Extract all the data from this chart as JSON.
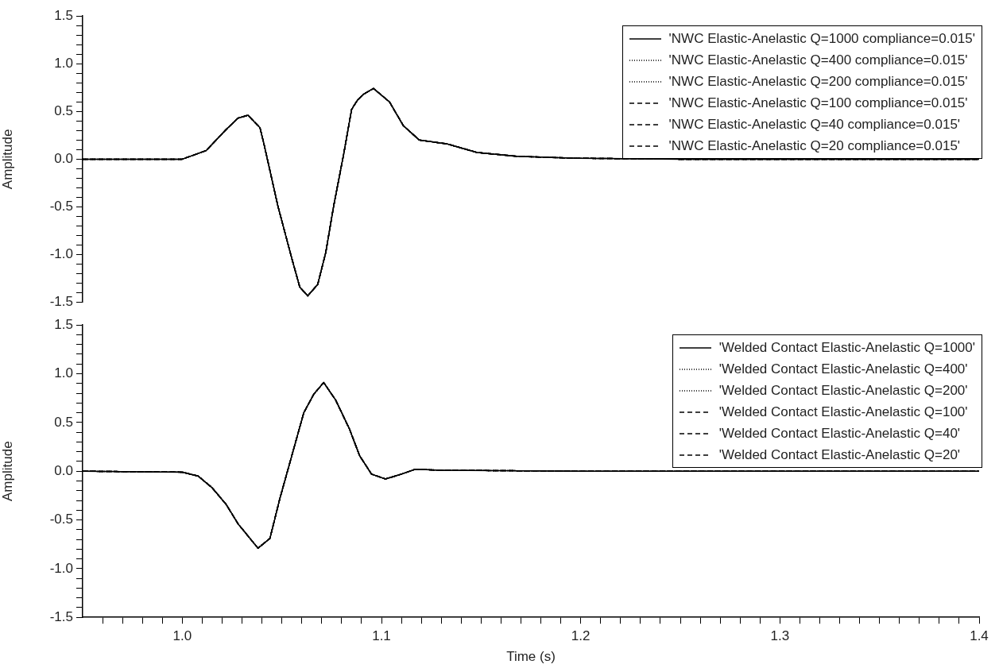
{
  "chart_data": [
    {
      "type": "line",
      "ylabel": "Amplitude",
      "legend": "top right",
      "tick_labels": "y",
      "xlim": [
        0.95,
        1.4
      ],
      "ylim": [
        -1.5,
        1.5
      ],
      "yticks": [
        -1.5,
        {
          "value": -1.4,
          "label": null
        },
        {
          "value": -1.3,
          "label": null
        },
        {
          "value": -1.2,
          "label": null
        },
        {
          "value": -1.1,
          "label": null
        },
        {
          "value": -1,
          "label": "-1.0"
        },
        {
          "value": -0.9,
          "label": null
        },
        {
          "value": -0.8,
          "label": null
        },
        {
          "value": -0.7,
          "label": null
        },
        {
          "value": -0.6,
          "label": null
        },
        -0.5,
        {
          "value": -0.4,
          "label": null
        },
        {
          "value": -0.3,
          "label": null
        },
        {
          "value": -0.2,
          "label": null
        },
        {
          "value": -0.1,
          "label": null
        },
        {
          "value": 0,
          "label": "0.0"
        },
        {
          "value": 0.1,
          "label": null
        },
        {
          "value": 0.2,
          "label": null
        },
        {
          "value": 0.3,
          "label": null
        },
        {
          "value": 0.4,
          "label": null
        },
        0.5,
        {
          "value": 0.6,
          "label": null
        },
        {
          "value": 0.7,
          "label": null
        },
        {
          "value": 0.8,
          "label": null
        },
        {
          "value": 0.9,
          "label": null
        },
        {
          "value": 1,
          "label": "1.0"
        },
        {
          "value": 1.1,
          "label": null
        },
        {
          "value": 1.2,
          "label": null
        },
        {
          "value": 1.3,
          "label": null
        },
        {
          "value": 1.4,
          "label": null
        },
        1.5
      ],
      "x": [
        0.95,
        1.0,
        1.012,
        1.022,
        1.028,
        1.033,
        1.039,
        1.041,
        1.048,
        1.055,
        1.059,
        1.063,
        1.068,
        1.072,
        1.076,
        1.081,
        1.085,
        1.088,
        1.091,
        1.096,
        1.104,
        1.111,
        1.119,
        1.133,
        1.148,
        1.168,
        1.198,
        1.25,
        1.4
      ],
      "series": [
        {
          "name": "'NWC Elastic-Anelastic Q=1000 compliance=0.015'",
          "color": "#000000",
          "line_style": "solid",
          "values": [
            0,
            0,
            0.09,
            0.31,
            0.43,
            0.46,
            0.33,
            0.16,
            -0.49,
            -1.04,
            -1.34,
            -1.43,
            -1.31,
            -0.98,
            -0.49,
            0.05,
            0.52,
            0.62,
            0.68,
            0.74,
            0.6,
            0.35,
            0.2,
            0.16,
            0.07,
            0.03,
            0.01,
            0,
            0
          ]
        },
        {
          "name": "'NWC Elastic-Anelastic Q=400 compliance=0.015'",
          "color": "#000000",
          "line_style": "dotted",
          "values": [
            0,
            0,
            0.09,
            0.31,
            0.43,
            0.46,
            0.33,
            0.16,
            -0.49,
            -1.04,
            -1.34,
            -1.43,
            -1.31,
            -0.98,
            -0.49,
            0.05,
            0.52,
            0.62,
            0.68,
            0.74,
            0.6,
            0.35,
            0.2,
            0.16,
            0.07,
            0.03,
            0.01,
            0,
            0
          ]
        },
        {
          "name": "'NWC Elastic-Anelastic Q=200 compliance=0.015'",
          "color": "#000000",
          "line_style": "dotted",
          "values": [
            0,
            0,
            0.09,
            0.31,
            0.43,
            0.46,
            0.33,
            0.16,
            -0.49,
            -1.04,
            -1.34,
            -1.43,
            -1.31,
            -0.98,
            -0.49,
            0.05,
            0.52,
            0.62,
            0.68,
            0.74,
            0.6,
            0.35,
            0.2,
            0.16,
            0.07,
            0.03,
            0.01,
            0,
            0
          ]
        },
        {
          "name": "'NWC Elastic-Anelastic Q=100 compliance=0.015'",
          "color": "#000000",
          "line_style": "dashed",
          "values": [
            0,
            0,
            0.09,
            0.31,
            0.43,
            0.46,
            0.33,
            0.16,
            -0.49,
            -1.04,
            -1.34,
            -1.43,
            -1.31,
            -0.98,
            -0.49,
            0.05,
            0.52,
            0.62,
            0.68,
            0.74,
            0.6,
            0.35,
            0.2,
            0.16,
            0.07,
            0.03,
            0.01,
            0,
            0
          ]
        },
        {
          "name": "'NWC Elastic-Anelastic Q=40 compliance=0.015'",
          "color": "#000000",
          "line_style": "dashed",
          "values": [
            0,
            0,
            0.09,
            0.31,
            0.43,
            0.46,
            0.33,
            0.16,
            -0.49,
            -1.04,
            -1.34,
            -1.43,
            -1.31,
            -0.98,
            -0.49,
            0.05,
            0.52,
            0.62,
            0.68,
            0.74,
            0.6,
            0.35,
            0.2,
            0.16,
            0.07,
            0.03,
            0.01,
            0,
            0
          ]
        },
        {
          "name": "'NWC Elastic-Anelastic Q=20 compliance=0.015'",
          "color": "#000000",
          "line_style": "dashed",
          "values": [
            0,
            0,
            0.09,
            0.31,
            0.43,
            0.46,
            0.33,
            0.16,
            -0.49,
            -1.04,
            -1.34,
            -1.43,
            -1.31,
            -0.98,
            -0.49,
            0.05,
            0.52,
            0.62,
            0.68,
            0.74,
            0.6,
            0.35,
            0.2,
            0.16,
            0.07,
            0.03,
            0.01,
            0,
            0
          ]
        }
      ]
    },
    {
      "type": "line",
      "ylabel": "Amplitude",
      "xlabel": "Time (s)",
      "legend": "top right",
      "xlim": [
        0.95,
        1.4
      ],
      "xticks": [
        {
          "value": 0.96,
          "label": null
        },
        {
          "value": 0.97,
          "label": null
        },
        {
          "value": 0.98,
          "label": null
        },
        {
          "value": 0.99,
          "label": null
        },
        {
          "value": 1,
          "label": "1.0"
        },
        {
          "value": 1.01,
          "label": null
        },
        {
          "value": 1.02,
          "label": null
        },
        {
          "value": 1.03,
          "label": null
        },
        {
          "value": 1.04,
          "label": null
        },
        {
          "value": 1.05,
          "label": null
        },
        {
          "value": 1.06,
          "label": null
        },
        {
          "value": 1.07,
          "label": null
        },
        {
          "value": 1.08,
          "label": null
        },
        {
          "value": 1.09,
          "label": null
        },
        {
          "value": 1.1,
          "label": "1.1"
        },
        {
          "value": 1.11,
          "label": null
        },
        {
          "value": 1.12,
          "label": null
        },
        {
          "value": 1.13,
          "label": null
        },
        {
          "value": 1.14,
          "label": null
        },
        {
          "value": 1.15,
          "label": null
        },
        {
          "value": 1.16,
          "label": null
        },
        {
          "value": 1.17,
          "label": null
        },
        {
          "value": 1.18,
          "label": null
        },
        {
          "value": 1.19,
          "label": null
        },
        {
          "value": 1.2,
          "label": "1.2"
        },
        {
          "value": 1.21,
          "label": null
        },
        {
          "value": 1.22,
          "label": null
        },
        {
          "value": 1.23,
          "label": null
        },
        {
          "value": 1.24,
          "label": null
        },
        {
          "value": 1.25,
          "label": null
        },
        {
          "value": 1.26,
          "label": null
        },
        {
          "value": 1.27,
          "label": null
        },
        {
          "value": 1.28,
          "label": null
        },
        {
          "value": 1.29,
          "label": null
        },
        {
          "value": 1.3,
          "label": "1.3"
        },
        {
          "value": 1.31,
          "label": null
        },
        {
          "value": 1.32,
          "label": null
        },
        {
          "value": 1.33,
          "label": null
        },
        {
          "value": 1.34,
          "label": null
        },
        {
          "value": 1.35,
          "label": null
        },
        {
          "value": 1.36,
          "label": null
        },
        {
          "value": 1.37,
          "label": null
        },
        {
          "value": 1.38,
          "label": null
        },
        {
          "value": 1.39,
          "label": null
        },
        {
          "value": 1.4,
          "label": "1.4"
        }
      ],
      "ylim": [
        -1.5,
        1.5
      ],
      "yticks": [
        -1.5,
        {
          "value": -1.4,
          "label": null
        },
        {
          "value": -1.3,
          "label": null
        },
        {
          "value": -1.2,
          "label": null
        },
        {
          "value": -1.1,
          "label": null
        },
        {
          "value": -1,
          "label": "-1.0"
        },
        {
          "value": -0.9,
          "label": null
        },
        {
          "value": -0.8,
          "label": null
        },
        {
          "value": -0.7,
          "label": null
        },
        {
          "value": -0.6,
          "label": null
        },
        -0.5,
        {
          "value": -0.4,
          "label": null
        },
        {
          "value": -0.3,
          "label": null
        },
        {
          "value": -0.2,
          "label": null
        },
        {
          "value": -0.1,
          "label": null
        },
        {
          "value": 0,
          "label": "0.0"
        },
        {
          "value": 0.1,
          "label": null
        },
        {
          "value": 0.2,
          "label": null
        },
        {
          "value": 0.3,
          "label": null
        },
        {
          "value": 0.4,
          "label": null
        },
        0.5,
        {
          "value": 0.6,
          "label": null
        },
        {
          "value": 0.7,
          "label": null
        },
        {
          "value": 0.8,
          "label": null
        },
        {
          "value": 0.9,
          "label": null
        },
        {
          "value": 1,
          "label": "1.0"
        },
        {
          "value": 1.1,
          "label": null
        },
        {
          "value": 1.2,
          "label": null
        },
        {
          "value": 1.3,
          "label": null
        },
        {
          "value": 1.4,
          "label": null
        },
        1.5
      ],
      "x": [
        0.95,
        1.0,
        1.008,
        1.015,
        1.022,
        1.028,
        1.038,
        1.044,
        1.049,
        1.055,
        1.061,
        1.066,
        1.071,
        1.077,
        1.084,
        1.089,
        1.095,
        1.102,
        1.11,
        1.117,
        1.13,
        1.2,
        1.4
      ],
      "series": [
        {
          "name": "'Welded Contact Elastic-Anelastic Q=1000'",
          "color": "#000000",
          "line_style": "solid",
          "values": [
            0,
            -0.01,
            -0.05,
            -0.17,
            -0.34,
            -0.54,
            -0.79,
            -0.69,
            -0.28,
            0.16,
            0.6,
            0.79,
            0.91,
            0.73,
            0.43,
            0.16,
            -0.03,
            -0.08,
            -0.03,
            0.02,
            0.01,
            0,
            0
          ]
        },
        {
          "name": "'Welded Contact Elastic-Anelastic Q=400'",
          "color": "#000000",
          "line_style": "dotted",
          "values": [
            0,
            -0.01,
            -0.05,
            -0.17,
            -0.34,
            -0.54,
            -0.79,
            -0.69,
            -0.28,
            0.16,
            0.6,
            0.79,
            0.91,
            0.73,
            0.43,
            0.16,
            -0.03,
            -0.08,
            -0.03,
            0.02,
            0.01,
            0,
            0
          ]
        },
        {
          "name": "'Welded Contact Elastic-Anelastic Q=200'",
          "color": "#000000",
          "line_style": "dotted",
          "values": [
            0,
            -0.01,
            -0.05,
            -0.17,
            -0.34,
            -0.54,
            -0.79,
            -0.69,
            -0.28,
            0.16,
            0.6,
            0.79,
            0.91,
            0.73,
            0.43,
            0.16,
            -0.03,
            -0.08,
            -0.03,
            0.02,
            0.01,
            0,
            0
          ]
        },
        {
          "name": "'Welded Contact Elastic-Anelastic Q=100'",
          "color": "#000000",
          "line_style": "dashed",
          "values": [
            0,
            -0.01,
            -0.05,
            -0.17,
            -0.34,
            -0.54,
            -0.79,
            -0.69,
            -0.28,
            0.16,
            0.6,
            0.79,
            0.91,
            0.73,
            0.43,
            0.16,
            -0.03,
            -0.08,
            -0.03,
            0.02,
            0.01,
            0,
            0
          ]
        },
        {
          "name": "'Welded Contact Elastic-Anelastic Q=40'",
          "color": "#000000",
          "line_style": "dashed",
          "values": [
            0,
            -0.01,
            -0.05,
            -0.17,
            -0.34,
            -0.54,
            -0.79,
            -0.69,
            -0.28,
            0.16,
            0.6,
            0.79,
            0.91,
            0.73,
            0.43,
            0.16,
            -0.03,
            -0.08,
            -0.03,
            0.02,
            0.01,
            0,
            0
          ]
        },
        {
          "name": "'Welded Contact Elastic-Anelastic Q=20'",
          "color": "#000000",
          "line_style": "dashed",
          "values": [
            0,
            -0.01,
            -0.05,
            -0.17,
            -0.34,
            -0.54,
            -0.79,
            -0.69,
            -0.28,
            0.16,
            0.6,
            0.79,
            0.91,
            0.73,
            0.43,
            0.16,
            -0.03,
            -0.08,
            -0.03,
            0.02,
            0.01,
            0,
            0
          ]
        }
      ]
    }
  ]
}
